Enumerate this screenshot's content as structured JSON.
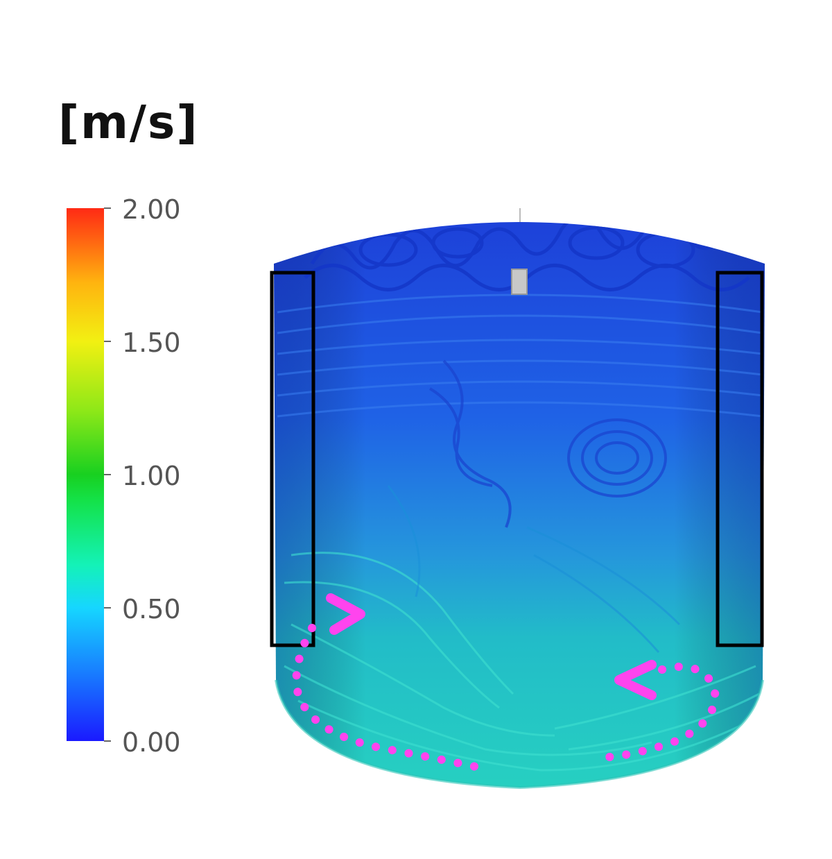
{
  "legend": {
    "unit": "[m/s]",
    "ticks": [
      "2.00",
      "1.50",
      "1.00",
      "0.50",
      "0.00"
    ],
    "colors": [
      "#ff2a14",
      "#f2f012",
      "#18d020",
      "#16e8ff",
      "#1a1aff"
    ]
  },
  "figure": {
    "streamline_low_color": "#1f4fe0",
    "streamline_mid_color": "#20c8c0",
    "annotation_box_color": "#000000",
    "flow_arrow_color": "#ff44ee"
  }
}
